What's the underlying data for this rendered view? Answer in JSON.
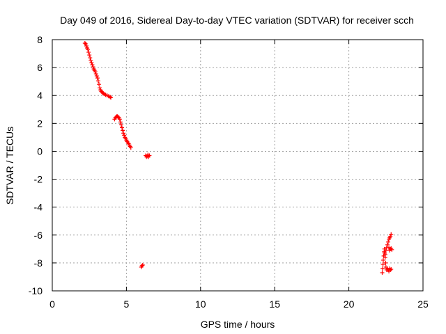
{
  "chart_data": {
    "type": "scatter",
    "title": "Day 049 of 2016, Sidereal Day-to-day VTEC variation (SDTVAR) for receiver scch",
    "xlabel": "GPS time / hours",
    "ylabel": "SDTVAR / TECUs",
    "xlim": [
      0,
      25
    ],
    "ylim": [
      -10,
      8
    ],
    "xticks": [
      0,
      5,
      10,
      15,
      20,
      25
    ],
    "yticks": [
      -10,
      -8,
      -6,
      -4,
      -2,
      0,
      2,
      4,
      6,
      8
    ],
    "xtick_labels": [
      "0",
      "5",
      "10",
      "15",
      "20",
      "25"
    ],
    "ytick_labels": [
      "-10",
      "-8",
      "-6",
      "-4",
      "-2",
      "0",
      "2",
      "4",
      "6",
      "8"
    ],
    "grid": true,
    "marker": "plus",
    "marker_color": "#ff0000",
    "series": [
      {
        "name": "SDTVAR",
        "x": [
          2.2,
          2.25,
          2.3,
          2.35,
          2.4,
          2.45,
          2.5,
          2.55,
          2.6,
          2.65,
          2.7,
          2.75,
          2.8,
          2.85,
          2.9,
          2.95,
          3.0,
          3.05,
          3.1,
          3.15,
          3.2,
          3.25,
          3.3,
          3.35,
          3.4,
          3.45,
          3.5,
          3.6,
          3.7,
          3.8,
          3.9,
          3.95,
          4.2,
          4.25,
          4.3,
          4.35,
          4.4,
          4.45,
          4.5,
          4.55,
          4.6,
          4.65,
          4.7,
          4.75,
          4.8,
          4.85,
          4.9,
          4.95,
          5.0,
          5.05,
          5.1,
          5.15,
          5.2,
          5.25,
          5.3,
          6.3,
          6.35,
          6.4,
          6.45,
          6.5,
          6.55,
          6.0,
          6.05,
          6.1,
          22.25,
          22.28,
          22.3,
          22.32,
          22.35,
          22.38,
          22.4,
          22.42,
          22.45,
          22.48,
          22.5,
          22.55,
          22.6,
          22.65,
          22.7,
          22.75,
          22.8,
          22.85,
          22.45,
          22.5,
          22.55,
          22.6,
          22.65,
          22.7,
          22.75,
          22.8,
          22.85,
          22.7,
          22.75,
          22.8,
          22.85,
          22.9
        ],
        "y": [
          7.75,
          7.7,
          7.55,
          7.4,
          7.3,
          7.1,
          6.9,
          6.7,
          6.5,
          6.35,
          6.2,
          6.05,
          5.9,
          5.8,
          5.7,
          5.55,
          5.4,
          5.25,
          5.05,
          4.8,
          4.55,
          4.4,
          4.3,
          4.25,
          4.2,
          4.15,
          4.1,
          4.05,
          4.0,
          3.95,
          3.9,
          3.85,
          2.3,
          2.4,
          2.45,
          2.5,
          2.5,
          2.45,
          2.4,
          2.3,
          2.1,
          1.9,
          1.7,
          1.5,
          1.3,
          1.15,
          1.0,
          0.9,
          0.8,
          0.7,
          0.6,
          0.55,
          0.45,
          0.35,
          0.25,
          -0.3,
          -0.4,
          -0.35,
          -0.25,
          -0.4,
          -0.3,
          -8.3,
          -8.2,
          -8.15,
          -8.7,
          -8.4,
          -8.1,
          -7.8,
          -7.5,
          -7.2,
          -7.0,
          -7.3,
          -7.6,
          -8.0,
          -8.3,
          -8.5,
          -8.4,
          -8.5,
          -8.6,
          -8.4,
          -8.5,
          -8.45,
          -7.4,
          -7.1,
          -6.9,
          -6.7,
          -6.5,
          -6.3,
          -6.2,
          -6.1,
          -5.95,
          -6.9,
          -7.1,
          -7.0,
          -6.95,
          -7.05
        ]
      }
    ]
  }
}
